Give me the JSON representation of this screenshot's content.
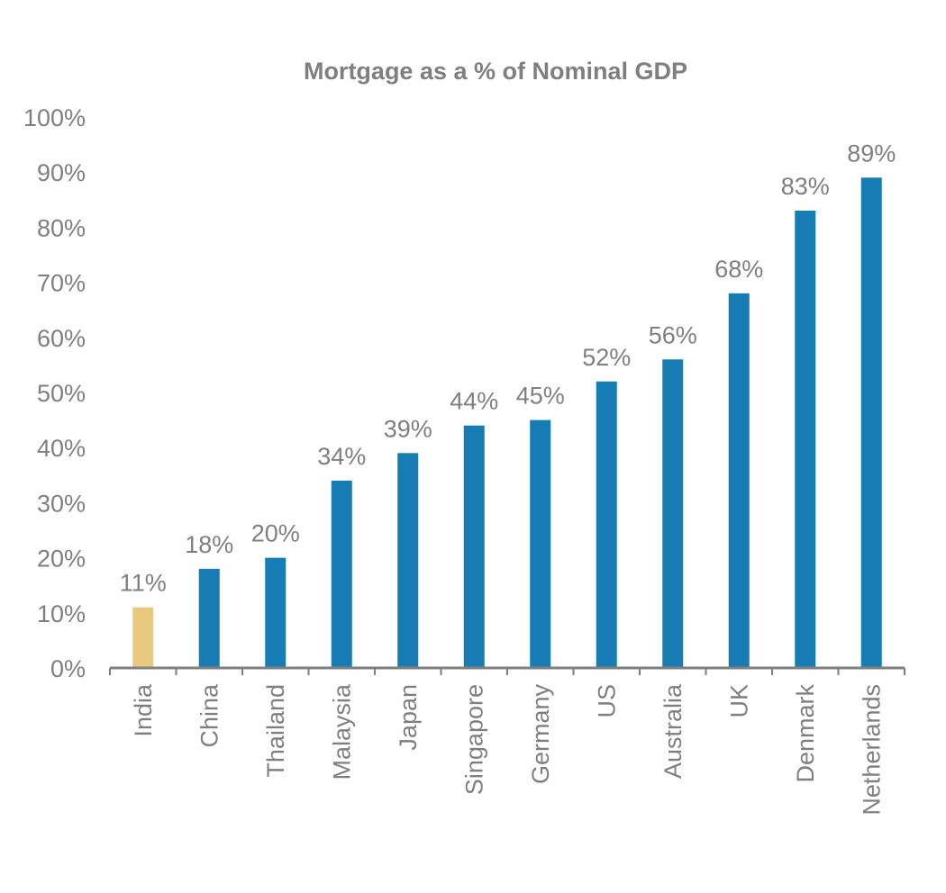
{
  "chart_data": {
    "type": "bar",
    "title": "Mortgage as a % of Nominal GDP",
    "xlabel": "",
    "ylabel": "",
    "categories": [
      "India",
      "China",
      "Thailand",
      "Malaysia",
      "Japan",
      "Singapore",
      "Germany",
      "US",
      "Australia",
      "UK",
      "Denmark",
      "Netherlands"
    ],
    "values": [
      11,
      18,
      20,
      34,
      39,
      44,
      45,
      52,
      56,
      68,
      83,
      89
    ],
    "data_labels": [
      "11%",
      "18%",
      "20%",
      "34%",
      "39%",
      "44%",
      "45%",
      "52%",
      "56%",
      "68%",
      "83%",
      "89%"
    ],
    "ylim": [
      0,
      100
    ],
    "y_ticks": [
      0,
      10,
      20,
      30,
      40,
      50,
      60,
      70,
      80,
      90,
      100
    ],
    "y_tick_labels": [
      "0%",
      "10%",
      "20%",
      "30%",
      "40%",
      "50%",
      "60%",
      "70%",
      "80%",
      "90%",
      "100%"
    ],
    "grid": false,
    "legend": "none",
    "colors": {
      "default_bar": "#177cb3",
      "highlight_bar": "#e8c97d",
      "text": "#7f7f7f",
      "axis": "#7f7f7f"
    },
    "highlight_categories": [
      "India"
    ]
  }
}
